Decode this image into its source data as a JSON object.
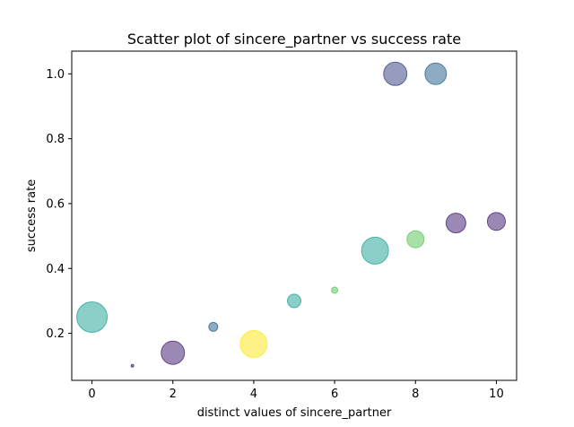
{
  "chart_data": {
    "type": "scatter",
    "title": "Scatter plot of sincere_partner vs success rate",
    "xlabel": "distinct values of sincere_partner",
    "ylabel": "success rate",
    "xlim": [
      -0.5,
      10.5
    ],
    "ylim": [
      0.055,
      1.07
    ],
    "xticks": [
      0,
      2,
      4,
      6,
      8,
      10
    ],
    "yticks": [
      0.2,
      0.4,
      0.6,
      0.8,
      1.0
    ],
    "xtick_labels": [
      "0",
      "2",
      "4",
      "6",
      "8",
      "10"
    ],
    "ytick_labels": [
      "0.2",
      "0.4",
      "0.6",
      "0.8",
      "1.0"
    ],
    "grid": false,
    "marker_alpha": 0.55,
    "points": [
      {
        "x": 0,
        "y": 0.25,
        "size": 34,
        "color": "#2ca89a"
      },
      {
        "x": 1,
        "y": 0.1,
        "size": 3,
        "color": "#482878"
      },
      {
        "x": 2,
        "y": 0.14,
        "size": 26,
        "color": "#482878"
      },
      {
        "x": 3,
        "y": 0.22,
        "size": 10,
        "color": "#31688e"
      },
      {
        "x": 4,
        "y": 0.167,
        "size": 30,
        "color": "#fde725"
      },
      {
        "x": 5,
        "y": 0.3,
        "size": 15,
        "color": "#2ca89a"
      },
      {
        "x": 6,
        "y": 0.333,
        "size": 7,
        "color": "#5ec962"
      },
      {
        "x": 7,
        "y": 0.455,
        "size": 30,
        "color": "#2ca89a"
      },
      {
        "x": 7.5,
        "y": 1.0,
        "size": 26,
        "color": "#3e4a89"
      },
      {
        "x": 8,
        "y": 0.49,
        "size": 19,
        "color": "#5ec962"
      },
      {
        "x": 8.5,
        "y": 1.0,
        "size": 24,
        "color": "#31688e"
      },
      {
        "x": 9,
        "y": 0.54,
        "size": 22,
        "color": "#482878"
      },
      {
        "x": 10,
        "y": 0.545,
        "size": 20,
        "color": "#482878"
      }
    ]
  }
}
